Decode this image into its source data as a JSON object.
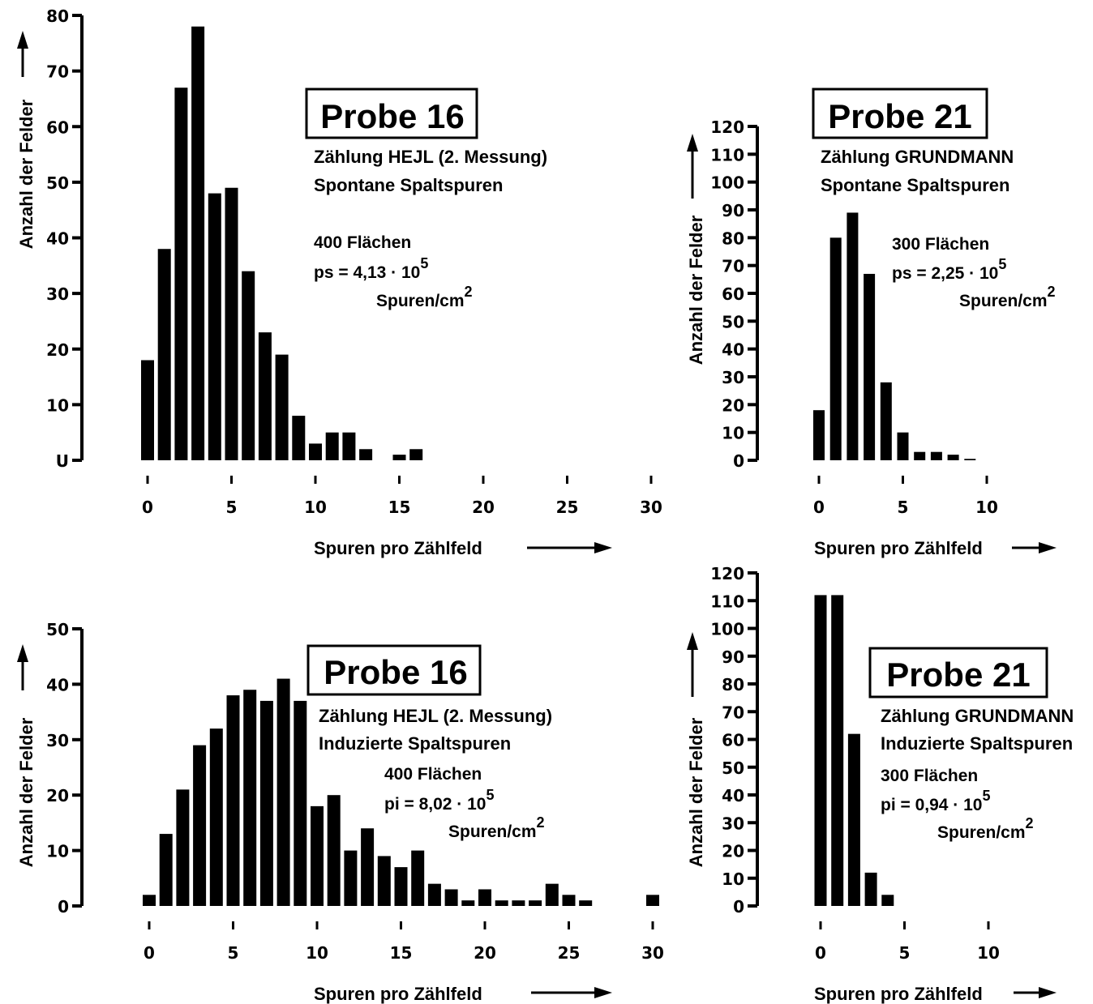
{
  "chart_data": [
    {
      "type": "bar",
      "title": "Probe 16",
      "subtitle_lines": [
        "Zählung HEJL (2. Messung)",
        "Spontane Spaltspuren"
      ],
      "annotation": {
        "line1": "400  Flächen",
        "line2_prefix": "ps  =  4,13  ·  10",
        "line2_exp": "5",
        "line3": "Spuren/cm",
        "line3_exp": "2"
      },
      "xlabel": "Spuren pro Zählfeld",
      "ylabel": "Anzahl der Felder",
      "x": [
        0,
        1,
        2,
        3,
        4,
        5,
        6,
        7,
        8,
        9,
        10,
        11,
        12,
        13,
        15,
        16
      ],
      "values": [
        18,
        38,
        67,
        78,
        48,
        49,
        34,
        23,
        19,
        8,
        3,
        5,
        5,
        2,
        1,
        2
      ],
      "xlim": [
        0,
        30
      ],
      "ylim": [
        0,
        80
      ],
      "xticks": [
        0,
        5,
        10,
        15,
        20,
        25,
        30
      ],
      "yticks": [
        0,
        10,
        20,
        30,
        40,
        50,
        60,
        70,
        80
      ],
      "ytick_labels": [
        "U",
        "10",
        "20",
        "30",
        "40",
        "50",
        "60",
        "70",
        "80"
      ]
    },
    {
      "type": "bar",
      "title": "Probe 21",
      "subtitle_lines": [
        "Zählung GRUNDMANN",
        "Spontane Spaltspuren"
      ],
      "annotation": {
        "line1": "300  Flächen",
        "line2_prefix": "ps  =  2,25  ·  10",
        "line2_exp": "5",
        "line3": "Spuren/cm",
        "line3_exp": "2"
      },
      "xlabel": "Spuren pro Zählfeld",
      "ylabel": "Anzahl der Felder",
      "x": [
        0,
        1,
        2,
        3,
        4,
        5,
        6,
        7,
        8,
        9
      ],
      "values": [
        18,
        80,
        89,
        67,
        28,
        10,
        3,
        3,
        2,
        0.5
      ],
      "xlim": [
        0,
        10
      ],
      "ylim": [
        0,
        120
      ],
      "xticks": [
        0,
        5,
        10
      ],
      "yticks": [
        0,
        10,
        20,
        30,
        40,
        50,
        60,
        70,
        80,
        90,
        100,
        110,
        120
      ],
      "ytick_labels": [
        "0",
        "10",
        "20",
        "30",
        "40",
        "50",
        "60",
        "70",
        "80",
        "90",
        "100",
        "110",
        "120"
      ]
    },
    {
      "type": "bar",
      "title": "Probe 16",
      "subtitle_lines": [
        "Zählung HEJL (2. Messung)",
        "Induzierte Spaltspuren"
      ],
      "annotation": {
        "line1": "400  Flächen",
        "line2_prefix": "pi  =  8,02  ·  10",
        "line2_exp": "5",
        "line3": "Spuren/cm",
        "line3_exp": "2"
      },
      "xlabel": "Spuren pro Zählfeld",
      "ylabel": "Anzahl der Felder",
      "x": [
        0,
        1,
        2,
        3,
        4,
        5,
        6,
        7,
        8,
        9,
        10,
        11,
        12,
        13,
        14,
        15,
        16,
        17,
        18,
        19,
        20,
        21,
        22,
        23,
        24,
        25,
        26,
        30
      ],
      "values": [
        2,
        13,
        21,
        29,
        32,
        38,
        39,
        37,
        41,
        37,
        18,
        20,
        10,
        14,
        9,
        7,
        10,
        4,
        3,
        1,
        3,
        1,
        1,
        1,
        4,
        2,
        1,
        2
      ],
      "xlim": [
        0,
        30
      ],
      "ylim": [
        0,
        50
      ],
      "xticks": [
        0,
        5,
        10,
        15,
        20,
        25,
        30
      ],
      "yticks": [
        0,
        10,
        20,
        30,
        40,
        50
      ],
      "ytick_labels": [
        "0",
        "10",
        "20",
        "30",
        "40",
        "50"
      ]
    },
    {
      "type": "bar",
      "title": "Probe 21",
      "subtitle_lines": [
        "Zählung GRUNDMANN",
        "Induzierte Spaltspuren"
      ],
      "annotation": {
        "line1": "300  Flächen",
        "line2_prefix": "pi  =  0,94  ·  10",
        "line2_exp": "5",
        "line3": "Spuren/cm",
        "line3_exp": "2"
      },
      "xlabel": "Spuren pro Zählfeld",
      "ylabel": "Anzahl der Felder",
      "x": [
        0,
        1,
        2,
        3,
        4
      ],
      "values": [
        112,
        112,
        62,
        12,
        4
      ],
      "xlim": [
        0,
        10
      ],
      "ylim": [
        0,
        120
      ],
      "xticks": [
        0,
        5,
        10
      ],
      "yticks": [
        0,
        10,
        20,
        30,
        40,
        50,
        60,
        70,
        80,
        90,
        100,
        110,
        120
      ],
      "ytick_labels": [
        "0",
        "10",
        "20",
        "30",
        "40",
        "50",
        "60",
        "70",
        "80",
        "90",
        "100",
        "110",
        "120"
      ]
    }
  ]
}
